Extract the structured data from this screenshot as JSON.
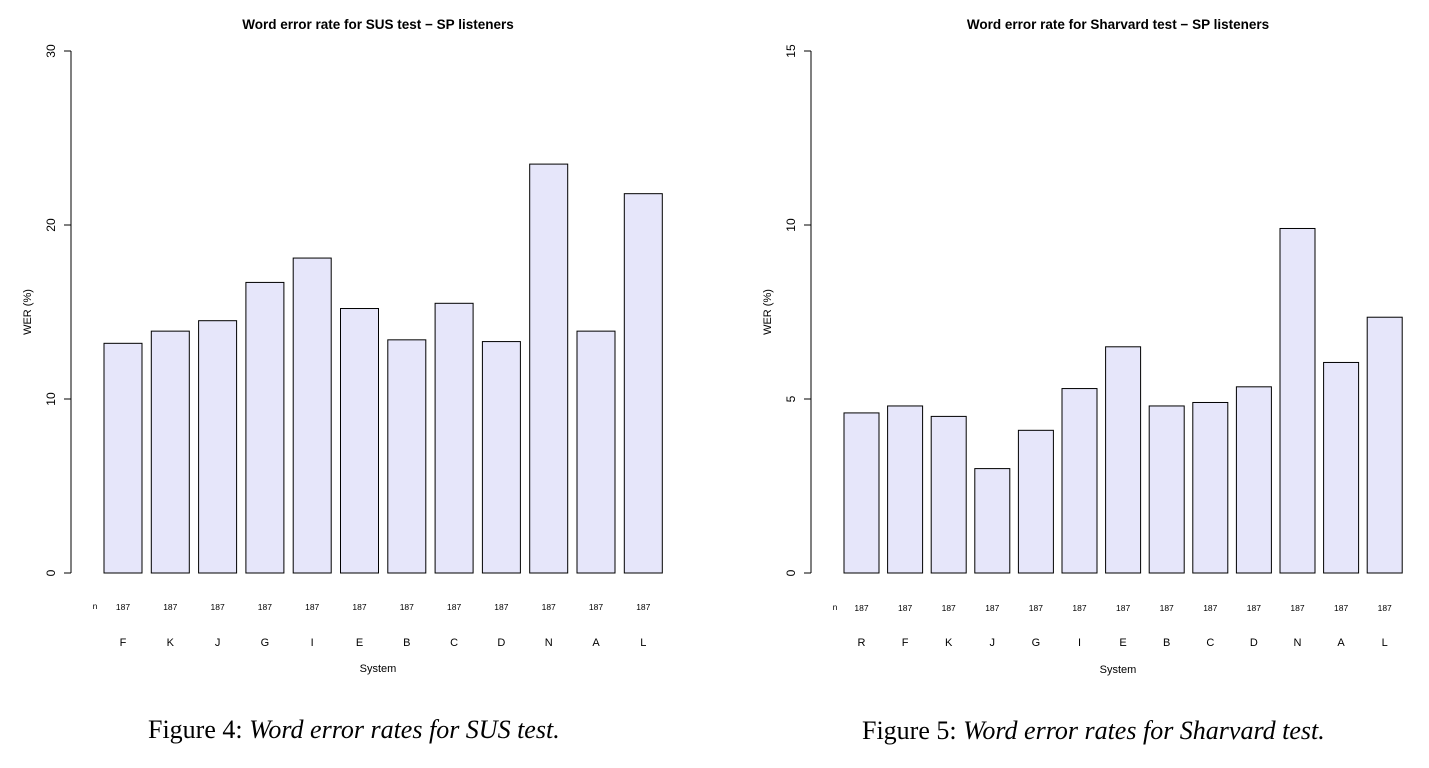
{
  "chart_data": [
    {
      "type": "bar",
      "title": "Word error rate for SUS test − SP listeners",
      "xlabel": "System",
      "ylabel": "WER (%)",
      "ylim": [
        0,
        30
      ],
      "yticks": [
        "0",
        "10",
        "20",
        "30"
      ],
      "count_label": "n",
      "categories": [
        "F",
        "K",
        "J",
        "G",
        "I",
        "E",
        "B",
        "C",
        "D",
        "N",
        "A",
        "L"
      ],
      "counts": [
        "187",
        "187",
        "187",
        "187",
        "187",
        "187",
        "187",
        "187",
        "187",
        "187",
        "187",
        "187"
      ],
      "values": [
        13.2,
        13.9,
        14.5,
        16.7,
        18.1,
        15.2,
        13.4,
        15.5,
        13.3,
        23.5,
        13.9,
        21.8
      ],
      "bar_color": "#e6e6fa",
      "grid": false
    },
    {
      "type": "bar",
      "title": "Word error rate for Sharvard test − SP listeners",
      "xlabel": "System",
      "ylabel": "WER (%)",
      "ylim": [
        0,
        15
      ],
      "yticks": [
        "0",
        "5",
        "10",
        "15"
      ],
      "count_label": "n",
      "categories": [
        "R",
        "F",
        "K",
        "J",
        "G",
        "I",
        "E",
        "B",
        "C",
        "D",
        "N",
        "A",
        "L"
      ],
      "counts": [
        "187",
        "187",
        "187",
        "187",
        "187",
        "187",
        "187",
        "187",
        "187",
        "187",
        "187",
        "187",
        "187"
      ],
      "values": [
        4.6,
        4.8,
        4.5,
        3.0,
        4.1,
        5.3,
        6.5,
        4.8,
        4.9,
        5.35,
        9.9,
        6.05,
        7.35
      ],
      "bar_color": "#e6e6fa",
      "grid": false
    }
  ],
  "captions": [
    {
      "label": "Figure 4:",
      "text": "Word error rates for SUS test."
    },
    {
      "label": "Figure 5:",
      "text": "Word error rates for Sharvard test."
    }
  ]
}
